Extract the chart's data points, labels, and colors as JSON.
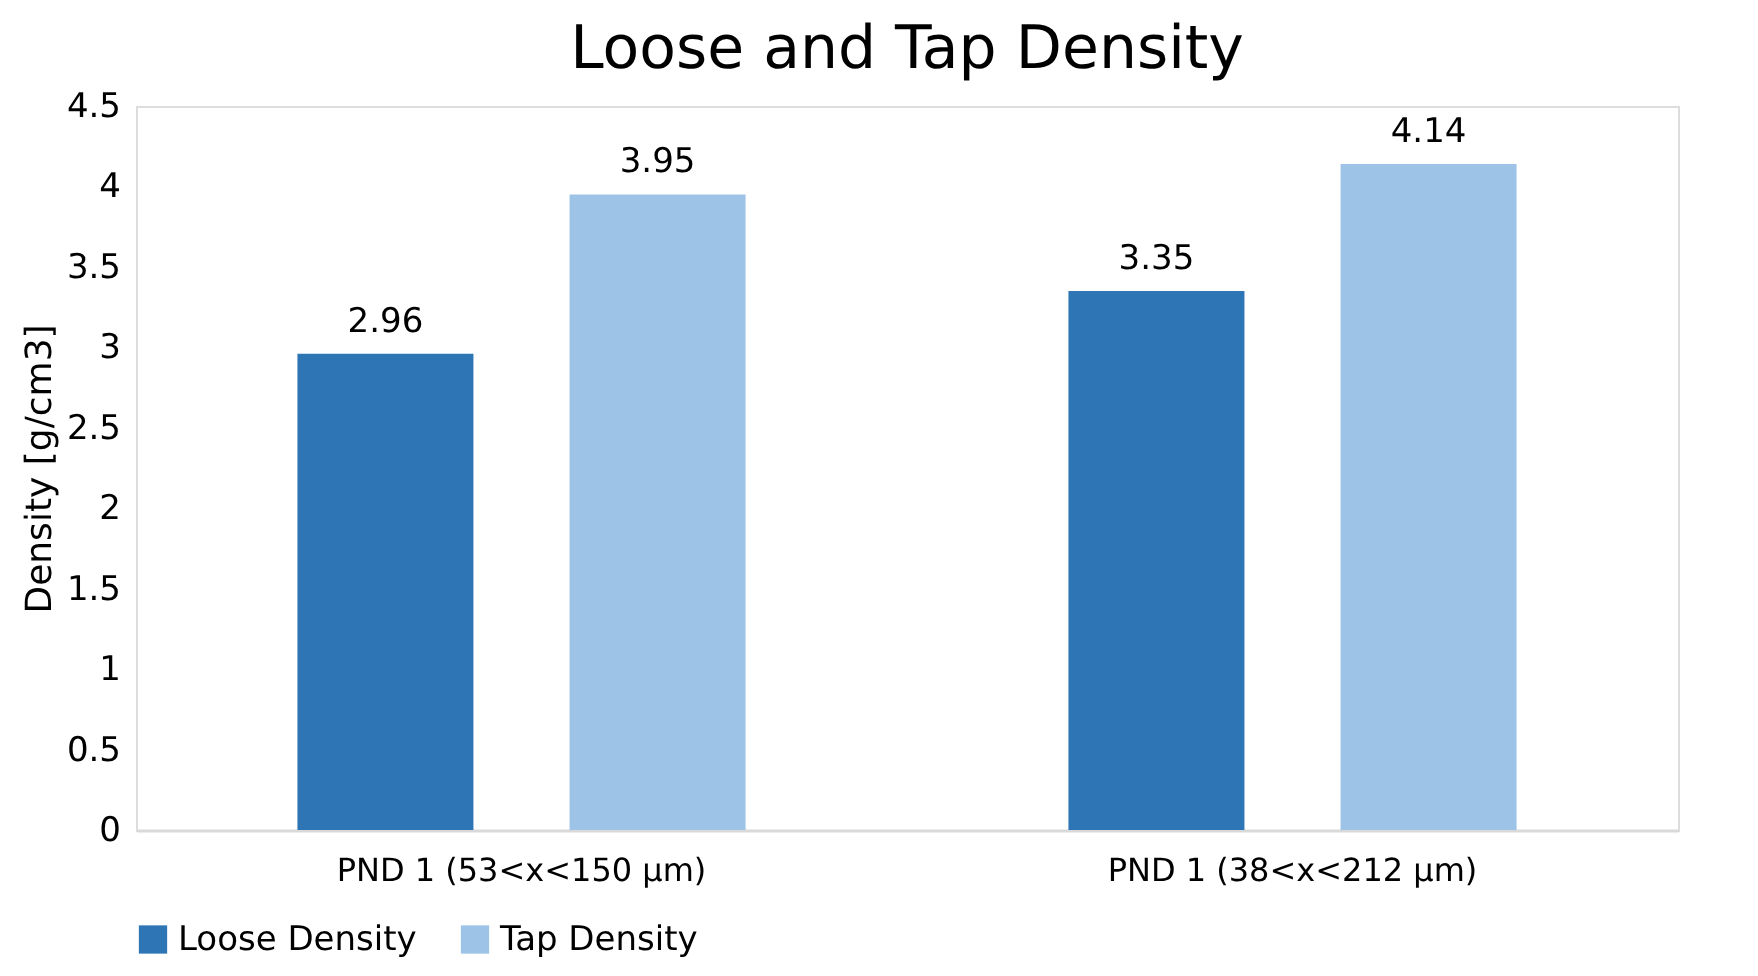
{
  "chart_data": {
    "type": "bar",
    "title": "Loose and Tap Density",
    "ylabel": "Density [g/cm3]",
    "categories": [
      "PND 1 (53<x<150 µm)",
      "PND 1 (38<x<212 µm)"
    ],
    "series": [
      {
        "name": "Loose Density",
        "color": "#2e75b6",
        "values": [
          2.96,
          3.35
        ]
      },
      {
        "name": "Tap Density",
        "color": "#9dc3e6",
        "values": [
          3.95,
          4.14
        ]
      }
    ],
    "ylim": [
      0,
      4.5
    ],
    "yticks": [
      0,
      0.5,
      1,
      1.5,
      2,
      2.5,
      3,
      3.5,
      4,
      4.5
    ],
    "data_labels": true,
    "grid": false,
    "legend": "bottom"
  }
}
